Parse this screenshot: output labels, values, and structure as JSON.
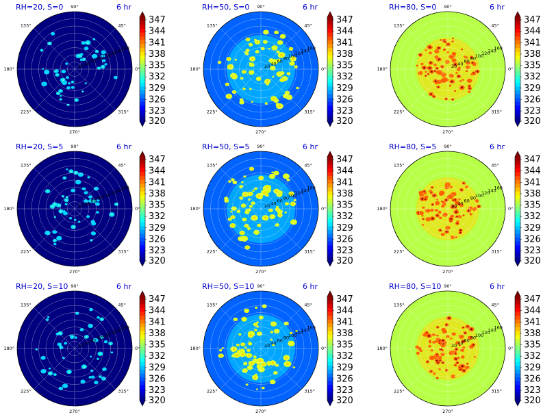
{
  "chart_data": {
    "type": "polar-contour",
    "colormap": "jet",
    "colorbar": {
      "ticks": [
        "347",
        "344",
        "341",
        "338",
        "335",
        "332",
        "329",
        "326",
        "323",
        "320"
      ],
      "min": 320,
      "max": 347
    },
    "angle_labels": [
      "90°",
      "45°",
      "0°",
      "315°",
      "270°",
      "225°",
      "180°",
      "135°"
    ],
    "radial_labels": [
      "20",
      "40",
      "60",
      "80",
      "100",
      "120",
      "140",
      "160"
    ],
    "panels": [
      {
        "label": "RH=20, S=0",
        "time": "6 hr",
        "background_value": 320,
        "blob_value": 329
      },
      {
        "label": "RH=50, S=0",
        "time": "6 hr",
        "background_value": 326,
        "blob_value": 336
      },
      {
        "label": "RH=80, S=0",
        "time": "6 hr",
        "background_value": 335,
        "blob_value": 341
      },
      {
        "label": "RH=20, S=5",
        "time": "6 hr",
        "background_value": 320,
        "blob_value": 329
      },
      {
        "label": "RH=50, S=5",
        "time": "6 hr",
        "background_value": 326,
        "blob_value": 336
      },
      {
        "label": "RH=80, S=5",
        "time": "6 hr",
        "background_value": 335,
        "blob_value": 341
      },
      {
        "label": "RH=20, S=10",
        "time": "6 hr",
        "background_value": 320,
        "blob_value": 329
      },
      {
        "label": "RH=50, S=10",
        "time": "6 hr",
        "background_value": 326,
        "blob_value": 336
      },
      {
        "label": "RH=80, S=10",
        "time": "6 hr",
        "background_value": 335,
        "blob_value": 341
      }
    ]
  }
}
